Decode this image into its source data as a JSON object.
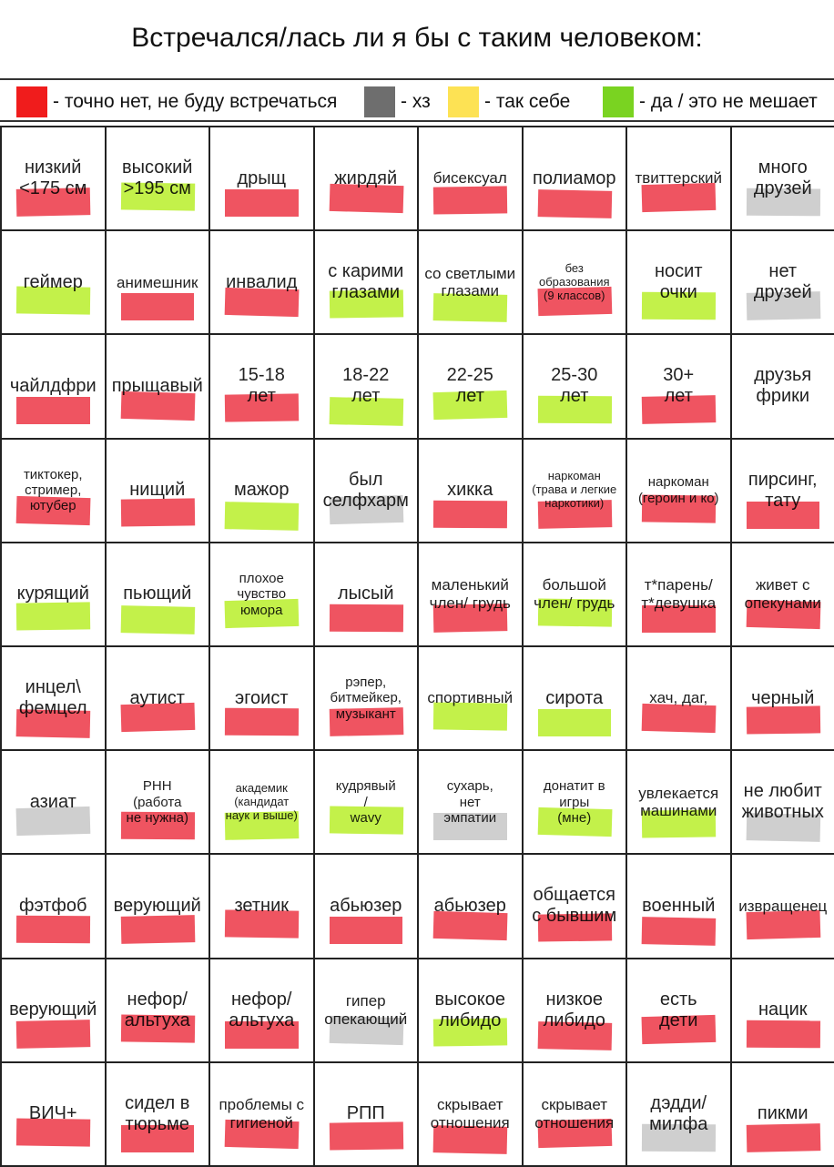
{
  "title": "Встречался/лась ли я бы с таким человеком:",
  "legend": [
    {
      "label": "- точно нет, не буду встречаться",
      "color": "#f01c1c"
    },
    {
      "label": "- хз",
      "color": "#6e6e6e"
    },
    {
      "label": "- так себе",
      "color": "#fde254"
    },
    {
      "label": "- да / это не мешает",
      "color": "#7ad321"
    }
  ],
  "grid": [
    [
      {
        "label": "низкий\n<175 см",
        "mark": "red"
      },
      {
        "label": "высокий\n>195 см",
        "mark": "green"
      },
      {
        "label": "дрыщ",
        "mark": "red"
      },
      {
        "label": "жирдяй",
        "mark": "red"
      },
      {
        "label": "бисексуал",
        "mark": "red"
      },
      {
        "label": "полиамор",
        "mark": "red"
      },
      {
        "label": "твиттерский",
        "mark": "red"
      },
      {
        "label": "много\nдрузей",
        "mark": "gray"
      }
    ],
    [
      {
        "label": "геймер",
        "mark": "green"
      },
      {
        "label": "анимешник",
        "mark": "red"
      },
      {
        "label": "инвалид",
        "mark": "red"
      },
      {
        "label": "с карими\nглазами",
        "mark": "green"
      },
      {
        "label": "со светлыми\nглазами",
        "mark": "green"
      },
      {
        "label": "без\nобразования\n(9 классов)",
        "mark": "red"
      },
      {
        "label": "носит\nочки",
        "mark": "green"
      },
      {
        "label": "нет\nдрузей",
        "mark": "gray"
      }
    ],
    [
      {
        "label": "чайлдфри",
        "mark": "red"
      },
      {
        "label": "прыщавый",
        "mark": "red"
      },
      {
        "label": "15-18\nлет",
        "mark": "red"
      },
      {
        "label": "18-22\nлет",
        "mark": "green"
      },
      {
        "label": "22-25\nлет",
        "mark": "green"
      },
      {
        "label": "25-30\nлет",
        "mark": "green"
      },
      {
        "label": "30+\nлет",
        "mark": "red"
      },
      {
        "label": "друзья\nфрики",
        "mark": ""
      }
    ],
    [
      {
        "label": "тиктокер,\nстример,\nютубер",
        "mark": "red"
      },
      {
        "label": "нищий",
        "mark": "red"
      },
      {
        "label": "мажор",
        "mark": "green"
      },
      {
        "label": "был\nселфхарм",
        "mark": "gray"
      },
      {
        "label": "хикка",
        "mark": "red"
      },
      {
        "label": "наркоман\n(трава и легкие\nнаркотики)",
        "mark": "red"
      },
      {
        "label": "наркоман\n(героин и ко)",
        "mark": "red"
      },
      {
        "label": "пирсинг,\nтату",
        "mark": "red"
      }
    ],
    [
      {
        "label": "курящий",
        "mark": "green"
      },
      {
        "label": "пьющий",
        "mark": "green"
      },
      {
        "label": "плохое\nчувство\nюмора",
        "mark": "green"
      },
      {
        "label": "лысый",
        "mark": "red"
      },
      {
        "label": "маленький\nчлен/ грудь",
        "mark": "red"
      },
      {
        "label": "большой\nчлен/ грудь",
        "mark": "green"
      },
      {
        "label": "т*парень/\nт*девушка",
        "mark": "red"
      },
      {
        "label": "живет с\nопекунами",
        "mark": "red"
      }
    ],
    [
      {
        "label": "инцел\\\nфемцел",
        "mark": "red"
      },
      {
        "label": "аутист",
        "mark": "red"
      },
      {
        "label": "эгоист",
        "mark": "red"
      },
      {
        "label": "рэпер,\nбитмейкер,\nмузыкант",
        "mark": "red"
      },
      {
        "label": "спортивный",
        "mark": "green"
      },
      {
        "label": "сирота",
        "mark": "green"
      },
      {
        "label": "хач, даг,",
        "mark": "red"
      },
      {
        "label": "черный",
        "mark": "red"
      }
    ],
    [
      {
        "label": "азиат",
        "mark": "gray"
      },
      {
        "label": "РНН\n(работа\nне нужна)",
        "mark": "red"
      },
      {
        "label": "академик\n(кандидат\nнаук и выше)",
        "mark": "green"
      },
      {
        "label": "кудрявый\n/\nwavy",
        "mark": "green"
      },
      {
        "label": "сухарь,\nнет\nэмпатии",
        "mark": "gray"
      },
      {
        "label": "донатит в\nигры\n(мне)",
        "mark": "green"
      },
      {
        "label": "увлекается\nмашинами",
        "mark": "green"
      },
      {
        "label": "не любит\nживотных",
        "mark": "gray"
      }
    ],
    [
      {
        "label": "фэтфоб",
        "mark": "red"
      },
      {
        "label": "верующий",
        "mark": "red"
      },
      {
        "label": "зетник",
        "mark": "red"
      },
      {
        "label": "абьюзер",
        "mark": "red"
      },
      {
        "label": "абьюзер",
        "mark": "red"
      },
      {
        "label": "общается\nс бывшим",
        "mark": "red"
      },
      {
        "label": "военный",
        "mark": "red"
      },
      {
        "label": "извращенец",
        "mark": "red"
      }
    ],
    [
      {
        "label": "верующий",
        "mark": "red"
      },
      {
        "label": "нефор/\nальтуха",
        "mark": "red"
      },
      {
        "label": "нефор/\nальтуха",
        "mark": "red"
      },
      {
        "label": "гипер\nопекающий",
        "mark": "gray"
      },
      {
        "label": "высокое\nлибидо",
        "mark": "green"
      },
      {
        "label": "низкое\nлибидо",
        "mark": "red"
      },
      {
        "label": "есть\nдети",
        "mark": "red"
      },
      {
        "label": "нацик",
        "mark": "red"
      }
    ],
    [
      {
        "label": "ВИЧ+",
        "mark": "red"
      },
      {
        "label": "сидел в\nтюрьме",
        "mark": "red"
      },
      {
        "label": "проблемы с\nгигиеной",
        "mark": "red"
      },
      {
        "label": "РПП",
        "mark": "red"
      },
      {
        "label": "скрывает\nотношения",
        "mark": "red"
      },
      {
        "label": "скрывает\nотношения",
        "mark": "red"
      },
      {
        "label": "дэдди/\nмилфа",
        "mark": "gray"
      },
      {
        "label": "пикми",
        "mark": "red"
      }
    ]
  ]
}
